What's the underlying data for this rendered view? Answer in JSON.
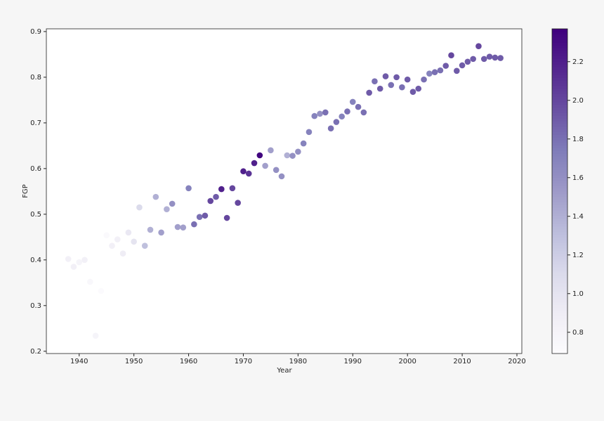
{
  "chart_data": {
    "type": "scatter",
    "xlabel": "Year",
    "ylabel": "FGP",
    "x": [
      1938,
      1939,
      1940,
      1941,
      1942,
      1943,
      1944,
      1945,
      1946,
      1947,
      1948,
      1949,
      1950,
      1951,
      1952,
      1953,
      1954,
      1955,
      1956,
      1957,
      1958,
      1959,
      1960,
      1961,
      1962,
      1963,
      1964,
      1965,
      1966,
      1967,
      1968,
      1969,
      1970,
      1971,
      1972,
      1973,
      1974,
      1975,
      1976,
      1977,
      1978,
      1979,
      1980,
      1981,
      1982,
      1983,
      1984,
      1985,
      1986,
      1987,
      1988,
      1989,
      1990,
      1991,
      1992,
      1993,
      1994,
      1995,
      1996,
      1997,
      1998,
      1999,
      2000,
      2001,
      2002,
      2003,
      2004,
      2005,
      2006,
      2007,
      2008,
      2009,
      2010,
      2011,
      2012,
      2013,
      2014,
      2015,
      2016,
      2017
    ],
    "values": [
      0.402,
      0.385,
      0.395,
      0.4,
      0.352,
      0.234,
      0.332,
      0.454,
      0.431,
      0.445,
      0.414,
      0.46,
      0.44,
      0.515,
      0.431,
      0.466,
      0.538,
      0.46,
      0.511,
      0.523,
      0.472,
      0.471,
      0.557,
      0.478,
      0.494,
      0.497,
      0.529,
      0.538,
      0.555,
      0.492,
      0.557,
      0.525,
      0.594,
      0.589,
      0.612,
      0.629,
      0.606,
      0.64,
      0.597,
      0.583,
      0.629,
      0.628,
      0.637,
      0.655,
      0.68,
      0.715,
      0.72,
      0.723,
      0.688,
      0.702,
      0.714,
      0.725,
      0.746,
      0.735,
      0.723,
      0.766,
      0.791,
      0.775,
      0.802,
      0.783,
      0.8,
      0.778,
      0.795,
      0.768,
      0.775,
      0.795,
      0.808,
      0.811,
      0.815,
      0.825,
      0.848,
      0.814,
      0.826,
      0.834,
      0.84,
      0.868,
      0.84,
      0.845,
      0.843,
      0.842
    ],
    "color_values": [
      0.85,
      0.85,
      0.8,
      0.85,
      0.75,
      0.8,
      0.7,
      0.72,
      0.85,
      0.85,
      0.9,
      0.95,
      1.0,
      1.1,
      1.3,
      1.4,
      1.4,
      1.5,
      1.4,
      1.6,
      1.5,
      1.5,
      1.7,
      1.8,
      1.8,
      1.9,
      2.0,
      1.9,
      2.2,
      2.0,
      2.0,
      2.0,
      2.2,
      2.1,
      2.2,
      2.35,
      1.5,
      1.5,
      1.6,
      1.6,
      1.4,
      1.6,
      1.6,
      1.7,
      1.7,
      1.7,
      1.6,
      1.8,
      1.8,
      1.8,
      1.7,
      1.8,
      1.7,
      1.8,
      1.8,
      1.9,
      1.8,
      1.9,
      1.9,
      1.8,
      1.9,
      1.8,
      1.9,
      1.9,
      1.9,
      1.8,
      1.7,
      1.8,
      1.8,
      1.9,
      2.0,
      1.9,
      1.9,
      1.9,
      1.9,
      2.0,
      1.9,
      1.9,
      1.9,
      1.9
    ],
    "colormap": [
      "#fcfbfd",
      "#efedf5",
      "#dadaeb",
      "#bcbddc",
      "#9e9ac8",
      "#807dba",
      "#6a51a3",
      "#54278f",
      "#3f007d"
    ],
    "xlim": [
      1934,
      2020.9
    ],
    "xticks": [
      1940,
      1950,
      1960,
      1970,
      1980,
      1990,
      2000,
      2010,
      2020
    ],
    "ylim": [
      0.195,
      0.906
    ],
    "yticks": [
      0.2,
      0.3,
      0.4,
      0.5,
      0.6,
      0.7,
      0.8,
      0.9
    ],
    "clim": [
      0.69,
      2.37
    ],
    "cticks": [
      0.8,
      {
        "value": 1,
        "label": "1.0"
      },
      1.2,
      1.4,
      1.6,
      1.8,
      {
        "value": 2,
        "label": "2.0"
      },
      2.2
    ],
    "grid": false
  }
}
